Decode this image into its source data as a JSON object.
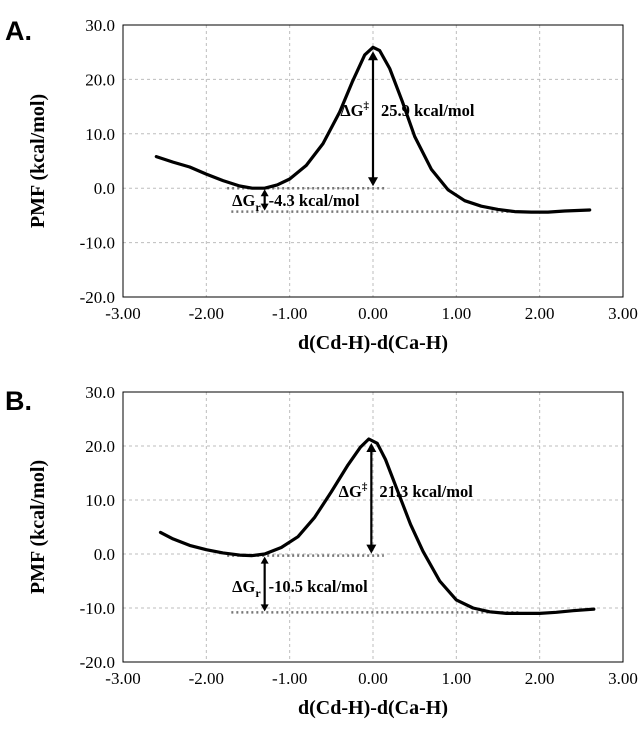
{
  "chart_data": [
    {
      "type": "line",
      "panel_label": "A.",
      "xlabel": "d(Cd-H)-d(Ca-H)",
      "ylabel": "PMF (kcal/mol)",
      "xlim": [
        -3.0,
        3.0
      ],
      "ylim": [
        -20.0,
        30.0
      ],
      "x_ticks": [
        "-3.00",
        "-2.00",
        "-1.00",
        "0.00",
        "1.00",
        "2.00",
        "3.00"
      ],
      "y_ticks": [
        "-20.0",
        "-10.0",
        "0.0",
        "10.0",
        "20.0",
        "30.0"
      ],
      "grid": true,
      "series": [
        {
          "x": [
            -2.6,
            -2.4,
            -2.2,
            -2.0,
            -1.8,
            -1.6,
            -1.45,
            -1.3,
            -1.15,
            -1.0,
            -0.8,
            -0.6,
            -0.4,
            -0.25,
            -0.1,
            0.0,
            0.08,
            0.2,
            0.35,
            0.5,
            0.7,
            0.9,
            1.1,
            1.3,
            1.5,
            1.7,
            1.9,
            2.1,
            2.3,
            2.6
          ],
          "y": [
            5.8,
            4.8,
            3.9,
            2.6,
            1.4,
            0.4,
            0.0,
            0.0,
            0.6,
            1.7,
            4.2,
            8.2,
            14.0,
            19.5,
            24.5,
            25.9,
            25.3,
            22.0,
            16.0,
            9.5,
            3.5,
            -0.3,
            -2.3,
            -3.3,
            -3.9,
            -4.3,
            -4.4,
            -4.4,
            -4.2,
            -4.0
          ]
        }
      ],
      "annotations": {
        "barrier": {
          "symbol": "ΔG",
          "sup": "‡",
          "value": "25.9 kcal/mol"
        },
        "reaction": {
          "symbol": "ΔG",
          "sub": "r",
          "value": "-4.3 kcal/mol"
        }
      },
      "ref_lines": {
        "reactant_y": 0.0,
        "barrier_x": 0.0,
        "barrier_y": 25.9,
        "product_y": -4.3
      }
    },
    {
      "type": "line",
      "panel_label": "B.",
      "xlabel": "d(Cd-H)-d(Ca-H)",
      "ylabel": "PMF (kcal/mol)",
      "xlim": [
        -3.0,
        3.0
      ],
      "ylim": [
        -20.0,
        30.0
      ],
      "x_ticks": [
        "-3.00",
        "-2.00",
        "-1.00",
        "0.00",
        "1.00",
        "2.00",
        "3.00"
      ],
      "y_ticks": [
        "-20.0",
        "-10.0",
        "0.0",
        "10.0",
        "20.0",
        "30.0"
      ],
      "grid": true,
      "series": [
        {
          "x": [
            -2.55,
            -2.4,
            -2.2,
            -2.0,
            -1.8,
            -1.6,
            -1.45,
            -1.3,
            -1.1,
            -0.9,
            -0.7,
            -0.5,
            -0.3,
            -0.15,
            -0.05,
            0.05,
            0.15,
            0.3,
            0.45,
            0.6,
            0.8,
            1.0,
            1.2,
            1.4,
            1.6,
            1.8,
            2.0,
            2.2,
            2.4,
            2.65
          ],
          "y": [
            4.0,
            2.8,
            1.6,
            0.8,
            0.2,
            -0.2,
            -0.3,
            0.0,
            1.2,
            3.2,
            6.8,
            11.5,
            16.5,
            19.8,
            21.3,
            20.5,
            17.5,
            11.5,
            5.5,
            0.5,
            -5.0,
            -8.5,
            -10.0,
            -10.7,
            -11.0,
            -11.0,
            -11.0,
            -10.8,
            -10.5,
            -10.2
          ]
        }
      ],
      "annotations": {
        "barrier": {
          "symbol": "ΔG",
          "sup": "‡",
          "value": "21.3 kcal/mol"
        },
        "reaction": {
          "symbol": "ΔG",
          "sub": "r",
          "value": "-10.5 kcal/mol"
        }
      },
      "ref_lines": {
        "reactant_y": -0.3,
        "barrier_x": -0.02,
        "barrier_y": 21.3,
        "product_y": -10.8
      }
    }
  ]
}
